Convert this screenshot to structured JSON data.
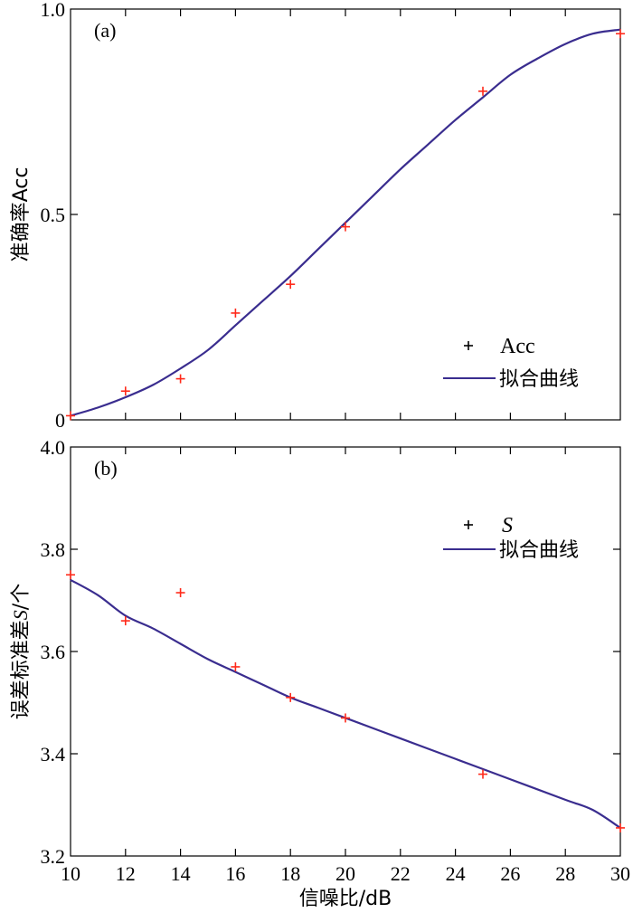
{
  "chart_data": [
    {
      "type": "line",
      "panel_label": "(a)",
      "ylabel": "准确率Acc",
      "xlim": [
        10,
        30
      ],
      "ylim": [
        0,
        1.0
      ],
      "yticks": [
        "0",
        "0.5",
        "1.0"
      ],
      "ytick_values": [
        0,
        0.5,
        1.0
      ],
      "points_series": {
        "name": "Acc",
        "x": [
          10,
          12,
          14,
          16,
          18,
          20,
          25,
          30
        ],
        "y": [
          0.01,
          0.07,
          0.1,
          0.26,
          0.33,
          0.47,
          0.8,
          0.94
        ]
      },
      "fit_series": {
        "name": "拟合曲线",
        "x": [
          10,
          11,
          12,
          13,
          14,
          15,
          16,
          17,
          18,
          19,
          20,
          21,
          22,
          23,
          24,
          25,
          26,
          27,
          28,
          29,
          30
        ],
        "y": [
          0.01,
          0.03,
          0.055,
          0.085,
          0.125,
          0.17,
          0.23,
          0.29,
          0.35,
          0.415,
          0.48,
          0.545,
          0.61,
          0.67,
          0.73,
          0.785,
          0.84,
          0.88,
          0.915,
          0.94,
          0.95
        ]
      },
      "legend_position": "lower-right",
      "grid": false
    },
    {
      "type": "line",
      "panel_label": "(b)",
      "ylabel_parts": [
        "误差标准差",
        "S",
        "/个"
      ],
      "xlabel": "信噪比/dB",
      "xlim": [
        10,
        30
      ],
      "ylim": [
        3.2,
        4.0
      ],
      "xticks": [
        "10",
        "12",
        "14",
        "16",
        "18",
        "20",
        "22",
        "24",
        "26",
        "28",
        "30"
      ],
      "xtick_values": [
        10,
        12,
        14,
        16,
        18,
        20,
        22,
        24,
        26,
        28,
        30
      ],
      "yticks": [
        "3.2",
        "3.4",
        "3.6",
        "3.8",
        "4.0"
      ],
      "ytick_values": [
        3.2,
        3.4,
        3.6,
        3.8,
        4.0
      ],
      "points_series": {
        "name": "S",
        "x": [
          10,
          12,
          14,
          16,
          18,
          20,
          25,
          30
        ],
        "y": [
          3.75,
          3.66,
          3.715,
          3.57,
          3.51,
          3.47,
          3.36,
          3.255
        ]
      },
      "fit_series": {
        "name": "拟合曲线",
        "x": [
          10,
          11,
          12,
          13,
          14,
          15,
          16,
          17,
          18,
          19,
          20,
          22,
          24,
          26,
          28,
          29,
          30
        ],
        "y": [
          3.74,
          3.71,
          3.67,
          3.645,
          3.615,
          3.585,
          3.56,
          3.535,
          3.51,
          3.49,
          3.47,
          3.43,
          3.39,
          3.35,
          3.31,
          3.29,
          3.255
        ]
      },
      "legend_position": "upper-right",
      "grid": false
    }
  ],
  "colors": {
    "points": "#ff2a1a",
    "fit_line": "#3a2d8f",
    "axes": "#000000"
  }
}
